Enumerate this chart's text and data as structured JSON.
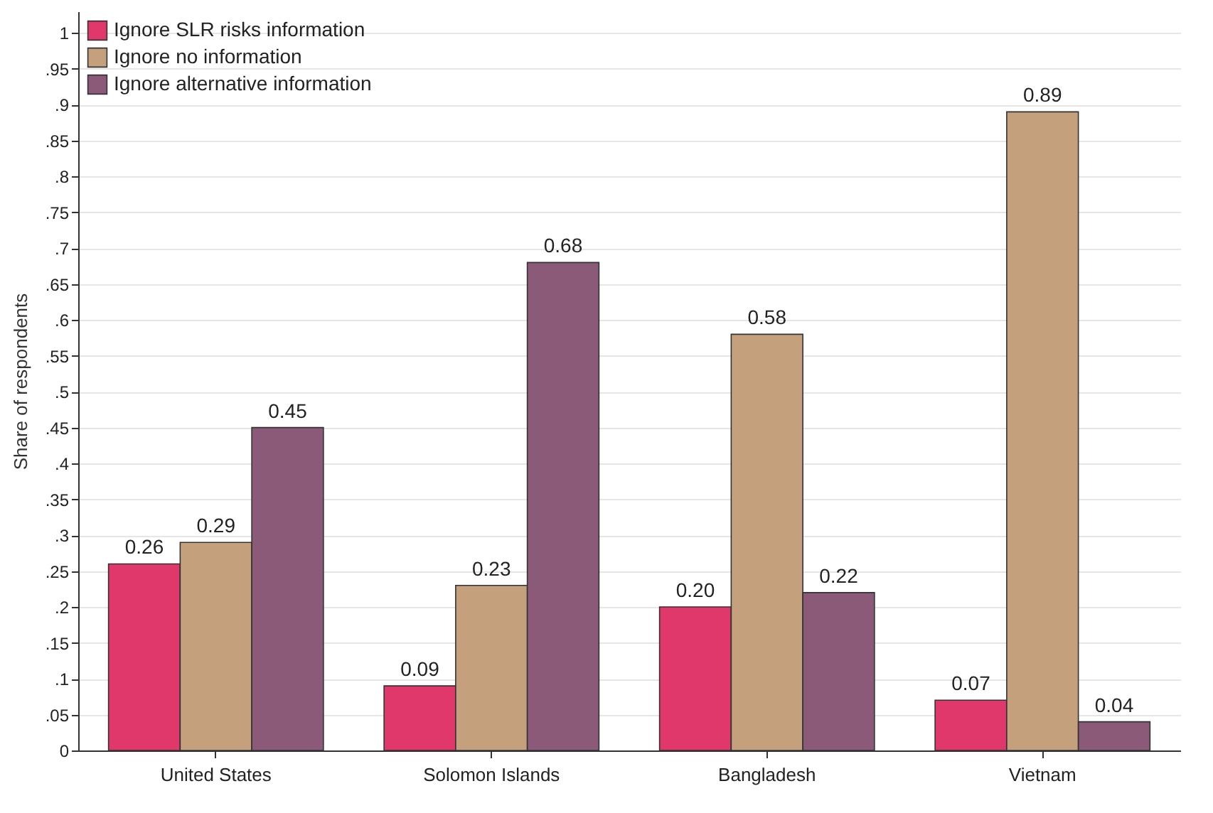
{
  "chart_data": {
    "type": "bar",
    "ylabel": "Share of respondents",
    "categories": [
      "United States",
      "Solomon Islands",
      "Bangladesh",
      "Vietnam"
    ],
    "series": [
      {
        "name": "Ignore SLR risks information",
        "color": "#e0386a",
        "values": [
          0.26,
          0.09,
          0.2,
          0.07
        ],
        "value_labels": [
          "0.26",
          "0.09",
          "0.20",
          "0.07"
        ]
      },
      {
        "name": "Ignore no information",
        "color": "#c4a07c",
        "values": [
          0.29,
          0.23,
          0.58,
          0.89
        ],
        "value_labels": [
          "0.29",
          "0.23",
          "0.58",
          "0.89"
        ]
      },
      {
        "name": "Ignore alternative information",
        "color": "#8b5a78",
        "values": [
          0.45,
          0.68,
          0.22,
          0.04
        ],
        "value_labels": [
          "0.45",
          "0.68",
          "0.22",
          "0.04"
        ]
      }
    ],
    "ylim": [
      0,
      1.03
    ],
    "yticks": [
      0,
      {
        "value": 0.05,
        "label": ".05"
      },
      {
        "value": 0.1,
        "label": ".1"
      },
      {
        "value": 0.15,
        "label": ".15"
      },
      {
        "value": 0.2,
        "label": ".2"
      },
      {
        "value": 0.25,
        "label": ".25"
      },
      {
        "value": 0.3,
        "label": ".3"
      },
      {
        "value": 0.35,
        "label": ".35"
      },
      {
        "value": 0.4,
        "label": ".4"
      },
      {
        "value": 0.45,
        "label": ".45"
      },
      {
        "value": 0.5,
        "label": ".5"
      },
      {
        "value": 0.55,
        "label": ".55"
      },
      {
        "value": 0.6,
        "label": ".6"
      },
      {
        "value": 0.65,
        "label": ".65"
      },
      {
        "value": 0.7,
        "label": ".7"
      },
      {
        "value": 0.75,
        "label": ".75"
      },
      {
        "value": 0.8,
        "label": ".8"
      },
      {
        "value": 0.85,
        "label": ".85"
      },
      {
        "value": 0.9,
        "label": ".9"
      },
      {
        "value": 0.95,
        "label": ".95"
      },
      1
    ],
    "grid": "y",
    "legend": "top left"
  }
}
